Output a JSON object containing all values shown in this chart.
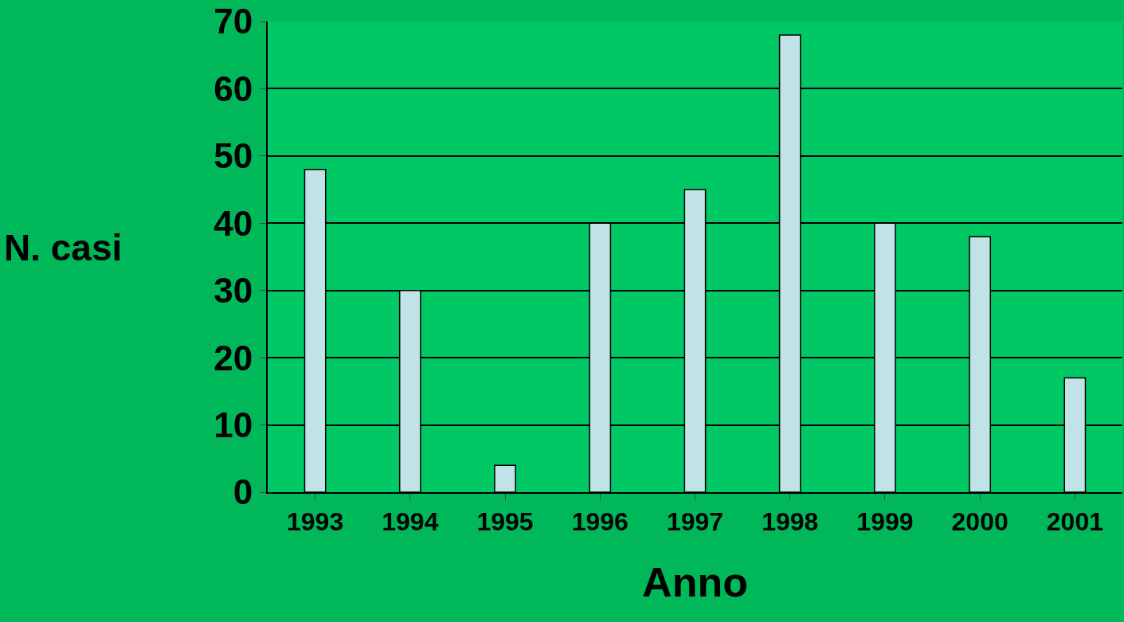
{
  "chart_data": {
    "type": "bar",
    "xlabel": "Anno",
    "ylabel": "N. casi",
    "categories": [
      "1993",
      "1994",
      "1995",
      "1996",
      "1997",
      "1998",
      "1999",
      "2000",
      "2001"
    ],
    "values": [
      48,
      30,
      4,
      40,
      45,
      68,
      40,
      38,
      17
    ],
    "color": "#bfe3e6",
    "ylim": [
      0,
      70
    ],
    "yticks": [
      0,
      10,
      20,
      30,
      40,
      50,
      60,
      70
    ],
    "grid": "y",
    "legend": false
  }
}
